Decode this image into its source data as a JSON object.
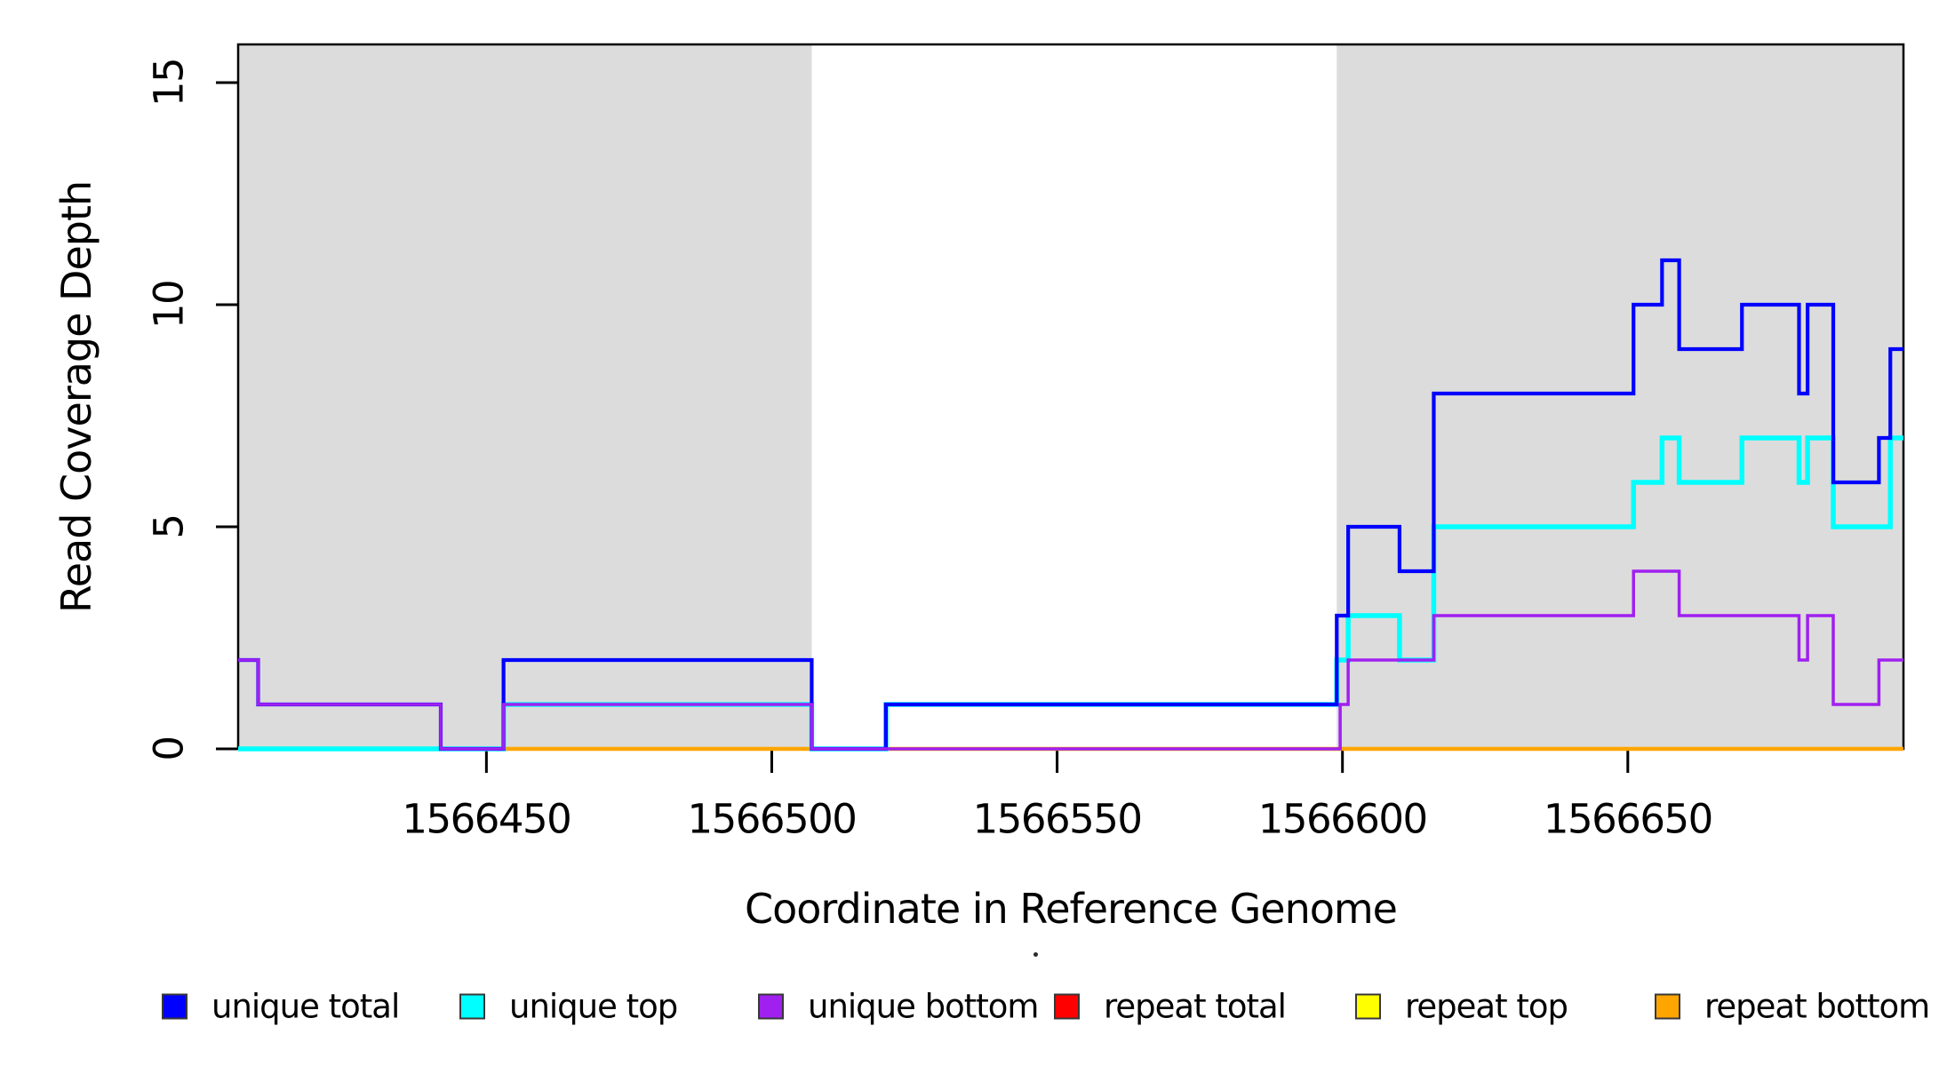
{
  "figure": {
    "background": "#FFFFFF",
    "text_color": "#000000"
  },
  "chart_data": {
    "type": "line",
    "subtype": "step",
    "title": "",
    "xlabel": "Coordinate in Reference Genome",
    "ylabel": "Read Coverage Depth",
    "xlim": [
      1566406.5,
      1566698.3
    ],
    "ylim": [
      0,
      15.86
    ],
    "x_ticks": [
      1566450,
      1566500,
      1566550,
      1566600,
      1566650
    ],
    "y_ticks": [
      0,
      5,
      10,
      15
    ],
    "grid": false,
    "legend_position": "bottom",
    "plot_border_color": "#000000",
    "shaded_regions": [
      {
        "name": "left-gray-band",
        "x0": 1566406.5,
        "x1": 1566507,
        "color": "#DCDCDC"
      },
      {
        "name": "right-gray-band",
        "x0": 1566599,
        "x1": 1566698.3,
        "color": "#DCDCDC"
      }
    ],
    "series": [
      {
        "name": "unique total",
        "color": "#0000FF",
        "z": 5,
        "width": 4.2,
        "steps": [
          [
            1566406.5,
            2
          ],
          [
            1566410,
            1
          ],
          [
            1566442,
            0
          ],
          [
            1566453,
            2
          ],
          [
            1566507,
            0
          ],
          [
            1566520,
            1
          ],
          [
            1566599,
            3
          ],
          [
            1566601,
            5
          ],
          [
            1566610,
            4
          ],
          [
            1566616,
            8
          ],
          [
            1566651,
            10
          ],
          [
            1566656,
            11
          ],
          [
            1566659,
            9
          ],
          [
            1566670,
            10
          ],
          [
            1566680,
            8
          ],
          [
            1566681.5,
            10
          ],
          [
            1566686,
            6
          ],
          [
            1566694,
            7
          ],
          [
            1566696,
            9
          ]
        ]
      },
      {
        "name": "unique top",
        "color": "#00FFFF",
        "z": 4,
        "width": 5.5,
        "steps": [
          [
            1566406.5,
            0
          ],
          [
            1566453,
            1
          ],
          [
            1566507,
            0
          ],
          [
            1566520,
            1
          ],
          [
            1566599,
            2
          ],
          [
            1566601,
            3
          ],
          [
            1566610,
            2
          ],
          [
            1566616,
            5
          ],
          [
            1566651,
            6
          ],
          [
            1566656,
            7
          ],
          [
            1566659,
            6
          ],
          [
            1566670,
            7
          ],
          [
            1566680,
            6
          ],
          [
            1566681.5,
            7
          ],
          [
            1566686,
            5
          ],
          [
            1566696,
            7
          ]
        ]
      },
      {
        "name": "unique bottom",
        "color": "#A020F0",
        "z": 6,
        "width": 3.5,
        "steps": [
          [
            1566406.5,
            2
          ],
          [
            1566410,
            1
          ],
          [
            1566442,
            0
          ],
          [
            1566453,
            1
          ],
          [
            1566507,
            0
          ],
          [
            1566599.6,
            1
          ],
          [
            1566601,
            2
          ],
          [
            1566616,
            3
          ],
          [
            1566651,
            4
          ],
          [
            1566659,
            3
          ],
          [
            1566680,
            2
          ],
          [
            1566681.5,
            3
          ],
          [
            1566686,
            1
          ],
          [
            1566694,
            2
          ]
        ]
      },
      {
        "name": "repeat total",
        "color": "#FF0000",
        "z": 1,
        "width": 4,
        "steps": [
          [
            1566406.5,
            0
          ]
        ]
      },
      {
        "name": "repeat top",
        "color": "#FFFF00",
        "z": 2,
        "width": 4,
        "steps": [
          [
            1566406.5,
            0
          ]
        ]
      },
      {
        "name": "repeat bottom",
        "color": "#FFA500",
        "z": 3,
        "width": 4.5,
        "steps": [
          [
            1566406.5,
            0
          ]
        ]
      }
    ]
  },
  "legend": {
    "items": [
      {
        "label": "unique total",
        "color": "#0000FF"
      },
      {
        "label": "unique top",
        "color": "#00FFFF"
      },
      {
        "label": "unique bottom",
        "color": "#A020F0"
      },
      {
        "label": "repeat total",
        "color": "#FF0000"
      },
      {
        "label": "repeat top",
        "color": "#FFFF00"
      },
      {
        "label": "repeat bottom",
        "color": "#FFA500"
      }
    ]
  }
}
